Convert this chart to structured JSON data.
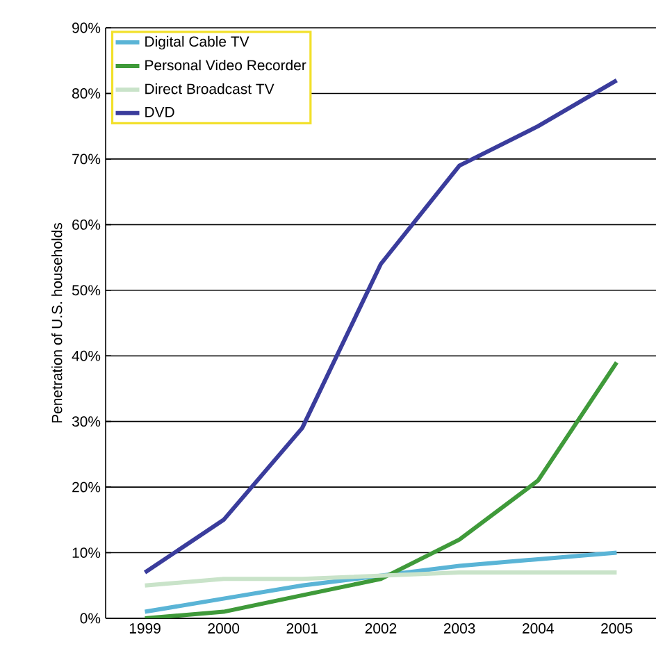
{
  "chart_data": {
    "type": "line",
    "ylabel": "Penetration of U.S. households",
    "categories": [
      "1999",
      "2000",
      "2001",
      "2002",
      "2003",
      "2004",
      "2005"
    ],
    "series": [
      {
        "name": "Digital Cable TV",
        "color": "#5ab4d6",
        "values": [
          1,
          3,
          5,
          6.5,
          8,
          9,
          10
        ]
      },
      {
        "name": "Personal Video Recorder",
        "color": "#3f9a3a",
        "values": [
          0,
          1,
          3.5,
          6,
          12,
          21,
          39
        ]
      },
      {
        "name": "Direct Broadcast TV",
        "color": "#c9e3c9",
        "values": [
          5,
          6,
          6,
          6.5,
          7,
          7,
          7
        ]
      },
      {
        "name": "DVD",
        "color": "#3a3c9c",
        "values": [
          7,
          15,
          29,
          54,
          69,
          75,
          82
        ]
      }
    ],
    "ylim": [
      0,
      90
    ],
    "yticks": [
      {
        "value": 0,
        "label": "0%"
      },
      {
        "value": 10,
        "label": "10%"
      },
      {
        "value": 20,
        "label": "20%"
      },
      {
        "value": 30,
        "label": "30%"
      },
      {
        "value": 40,
        "label": "40%"
      },
      {
        "value": 50,
        "label": "50%"
      },
      {
        "value": 60,
        "label": "60%"
      },
      {
        "value": 70,
        "label": "70%"
      },
      {
        "value": 80,
        "label": "80%"
      },
      {
        "value": 90,
        "label": "90%"
      }
    ],
    "grid": "y",
    "legend": "top left",
    "marker": "none",
    "line_style": "solid"
  }
}
